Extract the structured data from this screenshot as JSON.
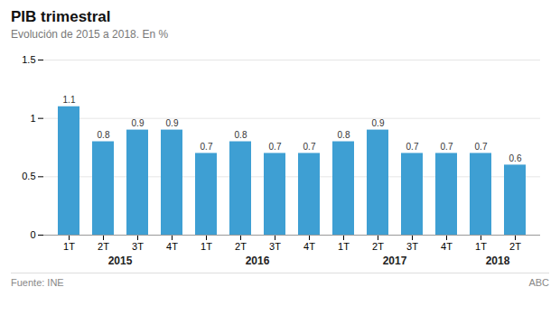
{
  "chart_data": {
    "type": "bar",
    "title": "PIB trimestral",
    "subtitle": "Evolución de 2015 a 2018. En %",
    "categories": [
      "1T",
      "2T",
      "3T",
      "4T",
      "1T",
      "2T",
      "3T",
      "4T",
      "1T",
      "2T",
      "3T",
      "4T",
      "1T",
      "2T"
    ],
    "values": [
      1.1,
      0.8,
      0.9,
      0.9,
      0.7,
      0.8,
      0.7,
      0.7,
      0.8,
      0.9,
      0.7,
      0.7,
      0.7,
      0.6
    ],
    "color": "#3e9fd3",
    "ylim": [
      0,
      1.5
    ],
    "yticks": [
      0,
      0.5,
      1.0,
      1.5
    ],
    "grid": true,
    "data_labels": true,
    "annotations": [
      "2015",
      "2016",
      "2017",
      "2018"
    ],
    "caption": "Fuente: INE",
    "credit": "ABC"
  }
}
